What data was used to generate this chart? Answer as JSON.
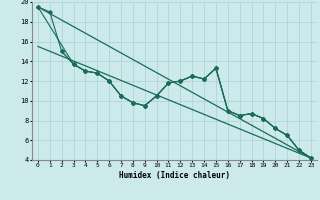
{
  "xlabel": "Humidex (Indice chaleur)",
  "bg_color": "#cce9ec",
  "grid_color": "#b0d4d8",
  "line_color": "#1a6b5a",
  "xlim": [
    -0.5,
    23.5
  ],
  "ylim": [
    4,
    20
  ],
  "yticks": [
    4,
    6,
    8,
    10,
    12,
    14,
    16,
    18,
    20
  ],
  "xticks": [
    0,
    1,
    2,
    3,
    4,
    5,
    6,
    7,
    8,
    9,
    10,
    11,
    12,
    13,
    14,
    15,
    16,
    17,
    18,
    19,
    20,
    21,
    22,
    23
  ],
  "series1_x": [
    0,
    1,
    2,
    3,
    4,
    5,
    6,
    7,
    8,
    9,
    10,
    11,
    12,
    13,
    14,
    15,
    16,
    17,
    18,
    19,
    20,
    21,
    22,
    23
  ],
  "series1_y": [
    19.5,
    19.0,
    15.0,
    13.7,
    13.0,
    12.8,
    12.0,
    10.5,
    9.8,
    9.5,
    10.5,
    11.8,
    12.0,
    12.5,
    12.2,
    13.3,
    9.0,
    8.5,
    8.7,
    8.2,
    7.2,
    6.5,
    5.0,
    4.2
  ],
  "series2_x": [
    2,
    3,
    4,
    5,
    6,
    7,
    8,
    9,
    10,
    11,
    12,
    13,
    14,
    15,
    16,
    17,
    18,
    19,
    20,
    21,
    22,
    23
  ],
  "series2_y": [
    15.0,
    13.7,
    13.0,
    12.8,
    12.0,
    10.5,
    9.8,
    9.5,
    10.5,
    11.8,
    12.0,
    12.5,
    12.2,
    13.3,
    9.0,
    8.5,
    8.7,
    8.2,
    7.2,
    6.5,
    5.0,
    4.2
  ],
  "series3_x": [
    0,
    3,
    4,
    5,
    6,
    7,
    8,
    9,
    10,
    11,
    12,
    13,
    14,
    15,
    16,
    17,
    18,
    19,
    20,
    21,
    22,
    23
  ],
  "series3_y": [
    19.5,
    13.7,
    13.0,
    12.8,
    12.0,
    10.5,
    9.8,
    9.5,
    10.5,
    11.8,
    12.0,
    12.5,
    12.2,
    13.3,
    9.0,
    8.5,
    8.7,
    8.2,
    7.2,
    6.5,
    5.0,
    4.2
  ],
  "trend1_x": [
    0,
    23
  ],
  "trend1_y": [
    19.5,
    4.2
  ],
  "trend2_x": [
    0,
    23
  ],
  "trend2_y": [
    15.5,
    4.2
  ]
}
